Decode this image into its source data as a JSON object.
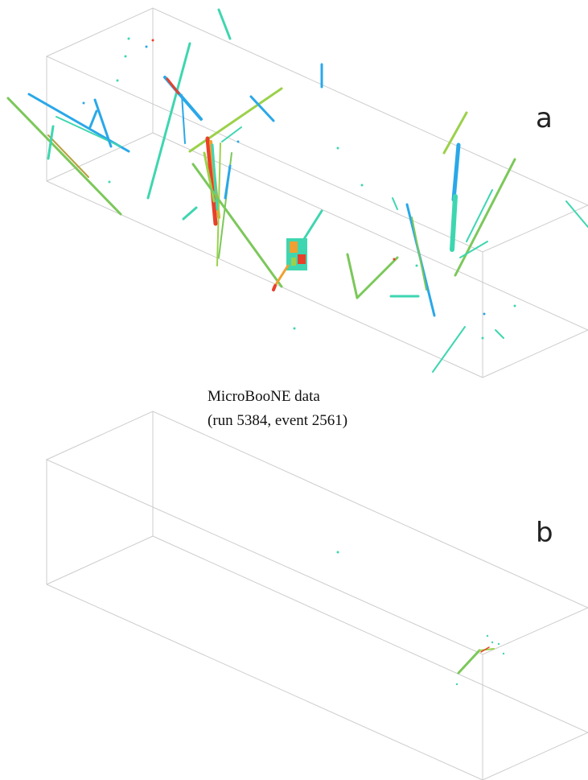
{
  "panels": [
    {
      "label": "a",
      "description": "3D event display with reconstructed particle tracks"
    },
    {
      "label": "b",
      "description": "3D event display after selection, single remaining track cluster"
    }
  ],
  "caption": {
    "line1": "MicroBooNE data",
    "line2": "(run 5384, event 2561)"
  },
  "colors": {
    "box_edge": "#c8c8c8",
    "track_low": "#2aa8e8",
    "track_mid": "#3ed6b0",
    "track_high": "#9bd14a",
    "track_peak": "#e8402a",
    "track_warm": "#f0a030"
  }
}
